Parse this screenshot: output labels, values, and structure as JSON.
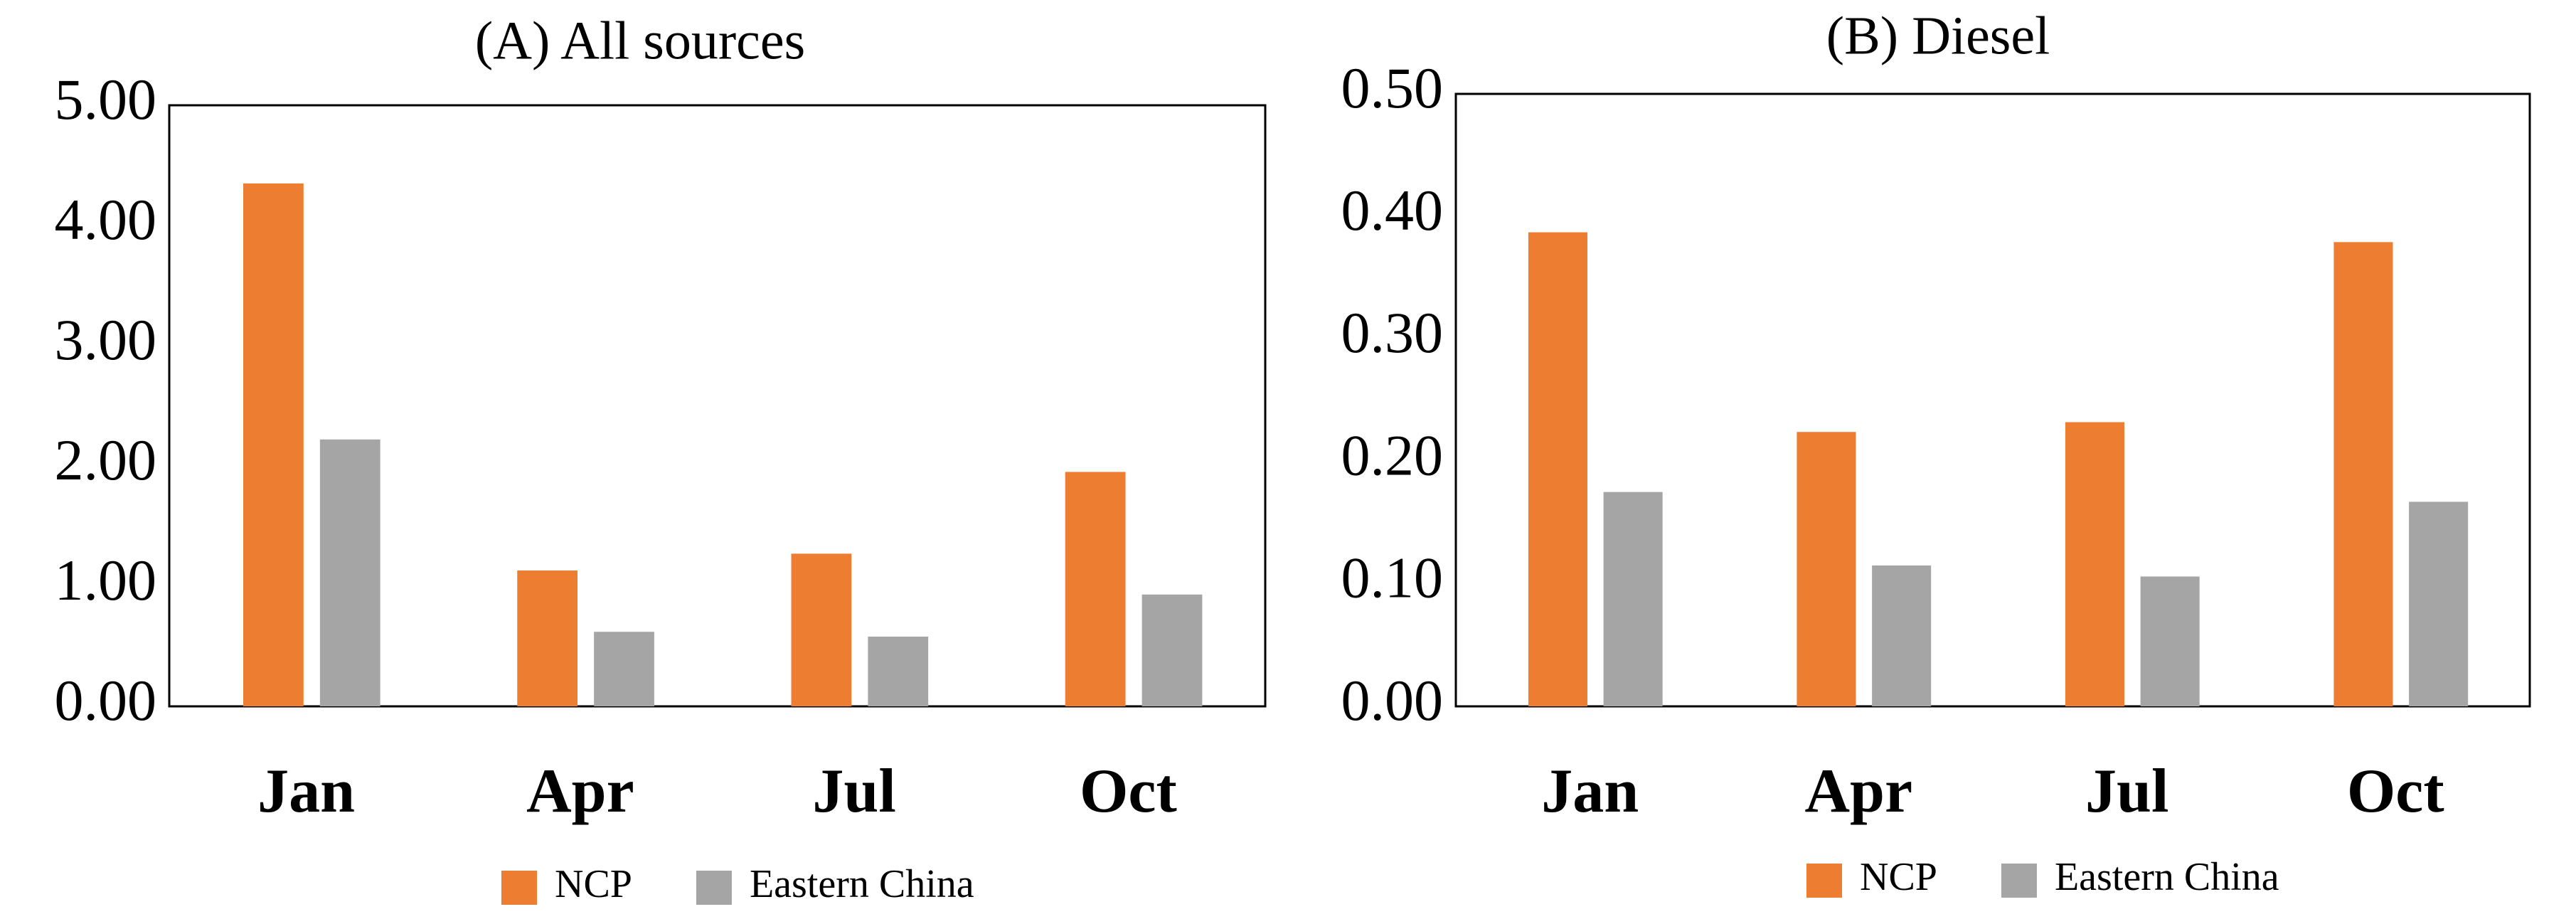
{
  "chart_data": [
    {
      "type": "bar",
      "title": "(A) All sources",
      "categories": [
        "Jan",
        "Apr",
        "Jul",
        "Oct"
      ],
      "series": [
        {
          "name": "NCP",
          "color": "#ed7d31",
          "values": [
            4.35,
            1.13,
            1.27,
            1.95
          ]
        },
        {
          "name": "Eastern China",
          "color": "#a5a5a5",
          "values": [
            2.22,
            0.62,
            0.58,
            0.93
          ]
        }
      ],
      "ylim": [
        0,
        5
      ],
      "yticks": [
        {
          "value": 0,
          "label": "0.00"
        },
        {
          "value": 1,
          "label": "1.00"
        },
        {
          "value": 2,
          "label": "2.00"
        },
        {
          "value": 3,
          "label": "3.00"
        },
        {
          "value": 4,
          "label": "4.00"
        },
        {
          "value": 5,
          "label": "5.00"
        }
      ],
      "grid": false,
      "legend": "bottom"
    },
    {
      "type": "bar",
      "title": "(B) Diesel",
      "categories": [
        "Jan",
        "Apr",
        "Jul",
        "Oct"
      ],
      "series": [
        {
          "name": "NCP",
          "color": "#ed7d31",
          "values": [
            0.387,
            0.224,
            0.232,
            0.379
          ]
        },
        {
          "name": "Eastern China",
          "color": "#a5a5a5",
          "values": [
            0.175,
            0.115,
            0.106,
            0.167
          ]
        }
      ],
      "ylim": [
        0,
        0.5
      ],
      "yticks": [
        {
          "value": 0,
          "label": "0.00"
        },
        {
          "value": 0.1,
          "label": "0.10"
        },
        {
          "value": 0.2,
          "label": "0.20"
        },
        {
          "value": 0.3,
          "label": "0.30"
        },
        {
          "value": 0.4,
          "label": "0.40"
        },
        {
          "value": 0.5,
          "label": "0.50"
        }
      ],
      "grid": false,
      "legend": "bottom"
    }
  ]
}
